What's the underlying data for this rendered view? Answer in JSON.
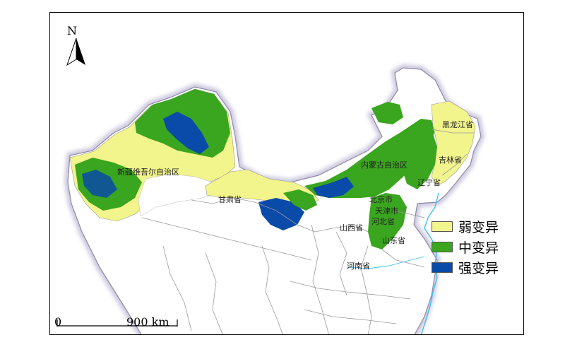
{
  "map": {
    "north_label": "N",
    "scale": {
      "start": "0",
      "end": "900 km"
    },
    "legend": [
      {
        "label": "弱变异",
        "color": "#f2f48c"
      },
      {
        "label": "中变异",
        "color": "#3aa51e"
      },
      {
        "label": "强变异",
        "color": "#0a4aa8"
      }
    ],
    "provinces": {
      "xinjiang": "新疆维吾尔自治区",
      "gansu": "甘肃省",
      "neimenggu": "内蒙古自治区",
      "heilongjiang": "黑龙江省",
      "jilin": "吉林省",
      "liaoning": "辽宁省",
      "beijing": "北京市",
      "tianjin": "天津市",
      "hebei": "河北省",
      "shanxi": "山西省",
      "shandong": "山东省",
      "henan": "河南省"
    },
    "colors": {
      "border": "#9a9a9a",
      "halo": "#c9c3dd",
      "water": "#3fc0ee"
    }
  }
}
